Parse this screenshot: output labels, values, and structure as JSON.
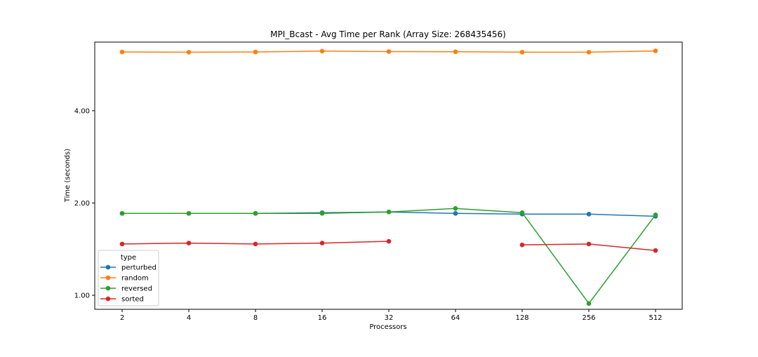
{
  "chart_data": {
    "type": "line",
    "title": "MPI_Bcast - Avg Time per Rank (Array Size: 268435456)",
    "xlabel": "Processors",
    "ylabel": "Time (seconds)",
    "x_scale": "categorical (log2 processors)",
    "y_scale": "log",
    "categories": [
      "2",
      "4",
      "8",
      "16",
      "32",
      "64",
      "128",
      "256",
      "512"
    ],
    "y_ticks": [
      1.0,
      2.0,
      4.0
    ],
    "y_tick_labels": [
      "1.00",
      "2.00",
      "4.00"
    ],
    "ylim": [
      0.9,
      6.7
    ],
    "grid": false,
    "legend": {
      "title": "type",
      "position": "lower-left",
      "entries": [
        "perturbed",
        "random",
        "reversed",
        "sorted"
      ]
    },
    "series": [
      {
        "name": "perturbed",
        "color": "#1f77b4",
        "values": [
          1.85,
          1.85,
          1.85,
          1.86,
          1.87,
          1.85,
          1.84,
          1.84,
          1.81
        ]
      },
      {
        "name": "random",
        "color": "#ff7f0e",
        "values": [
          6.22,
          6.21,
          6.22,
          6.26,
          6.24,
          6.23,
          6.21,
          6.21,
          6.27
        ]
      },
      {
        "name": "reversed",
        "color": "#2ca02c",
        "values": [
          1.85,
          1.85,
          1.85,
          1.85,
          1.87,
          1.92,
          1.86,
          0.94,
          1.83
        ]
      },
      {
        "name": "sorted",
        "color": "#d62728",
        "values": [
          1.47,
          1.48,
          1.47,
          1.48,
          1.5,
          null,
          1.46,
          1.47,
          1.4
        ]
      }
    ]
  }
}
